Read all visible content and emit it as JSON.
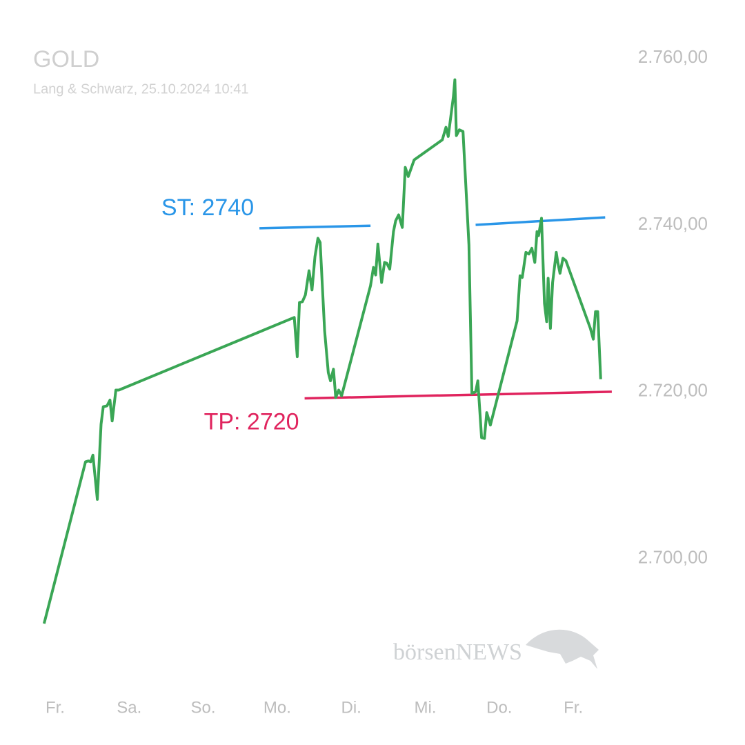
{
  "chart_data": {
    "type": "line",
    "title": "GOLD",
    "subtitle": "Lang & Schwarz, 25.10.2024 10:41",
    "watermark": "börsenNEWS",
    "color": "#3aa655",
    "x": [
      -0.15,
      0.41,
      0.45,
      0.48,
      0.51,
      0.57,
      0.62,
      0.65,
      0.7,
      0.74,
      0.77,
      0.82,
      0.86,
      3.23,
      3.27,
      3.3,
      3.34,
      3.38,
      3.43,
      3.47,
      3.51,
      3.55,
      3.58,
      3.64,
      3.69,
      3.72,
      3.76,
      3.79,
      3.83,
      3.87,
      4.26,
      4.3,
      4.33,
      4.36,
      4.41,
      4.45,
      4.48,
      4.52,
      4.57,
      4.6,
      4.64,
      4.69,
      4.73,
      4.77,
      4.85,
      5.23,
      5.28,
      5.31,
      5.38,
      5.4,
      5.42,
      5.46,
      5.51,
      5.59,
      5.63,
      5.68,
      5.71,
      5.76,
      5.8,
      5.83,
      5.88,
      6.24,
      6.28,
      6.31,
      6.36,
      6.4,
      6.44,
      6.48,
      6.51,
      6.53,
      6.57,
      6.61,
      6.64,
      6.66,
      6.69,
      6.72,
      6.77,
      6.79,
      6.82,
      6.86,
      6.9,
      7.23,
      7.27,
      7.3,
      7.33,
      7.37
    ],
    "values": [
      2692.2,
      2711.6,
      2711.7,
      2711.6,
      2712.4,
      2707.1,
      2716.1,
      2718.2,
      2718.3,
      2719.0,
      2716.5,
      2720.2,
      2720.2,
      2728.9,
      2724.2,
      2730.7,
      2730.8,
      2731.6,
      2734.5,
      2732.2,
      2736.2,
      2738.4,
      2737.9,
      2727.3,
      2722.3,
      2721.3,
      2722.7,
      2719.3,
      2720.2,
      2719.5,
      2732.7,
      2734.9,
      2734.0,
      2737.7,
      2733.1,
      2735.5,
      2735.4,
      2734.7,
      2739.2,
      2740.5,
      2741.2,
      2739.7,
      2746.9,
      2745.8,
      2747.8,
      2750.2,
      2751.7,
      2750.6,
      2755.4,
      2757.4,
      2750.7,
      2751.4,
      2751.2,
      2737.6,
      2719.8,
      2720.0,
      2721.3,
      2714.5,
      2714.4,
      2717.5,
      2716.0,
      2728.5,
      2733.9,
      2733.7,
      2736.7,
      2736.5,
      2737.2,
      2735.5,
      2739.2,
      2738.7,
      2740.8,
      2730.6,
      2728.4,
      2733.6,
      2727.6,
      2733.1,
      2736.7,
      2735.5,
      2734.2,
      2736.0,
      2735.7,
      2727.6,
      2726.3,
      2729.6,
      2729.6,
      2721.5
    ],
    "xlim": [
      -0.2,
      7.6
    ],
    "xticks": [
      {
        "value": 0,
        "label": "Fr."
      },
      {
        "value": 1,
        "label": "Sa."
      },
      {
        "value": 2,
        "label": "So."
      },
      {
        "value": 3,
        "label": "Mo."
      },
      {
        "value": 4,
        "label": "Di."
      },
      {
        "value": 5,
        "label": "Mi."
      },
      {
        "value": 6,
        "label": "Do."
      },
      {
        "value": 7,
        "label": "Fr."
      }
    ],
    "ylim": [
      2686,
      2762
    ],
    "yticks": [
      {
        "value": 2700,
        "label": "2.700,00"
      },
      {
        "value": 2720,
        "label": "2.720,00"
      },
      {
        "value": 2740,
        "label": "2.740,00"
      },
      {
        "value": 2760,
        "label": "2.760,00"
      }
    ],
    "grid": false,
    "annotations": [
      {
        "label": "ST: 2740",
        "color": "#2a96e8",
        "segments": [
          {
            "x": [
              2.76,
              4.26
            ],
            "values": [
              2739.6,
              2739.9
            ]
          },
          {
            "x": [
              5.68,
              7.43
            ],
            "values": [
              2740.0,
              2740.9
            ]
          }
        ]
      },
      {
        "label": "TP: 2720",
        "color": "#e0245e",
        "segments": [
          {
            "x": [
              3.37,
              7.52
            ],
            "values": [
              2719.2,
              2720.0
            ]
          }
        ]
      }
    ]
  }
}
